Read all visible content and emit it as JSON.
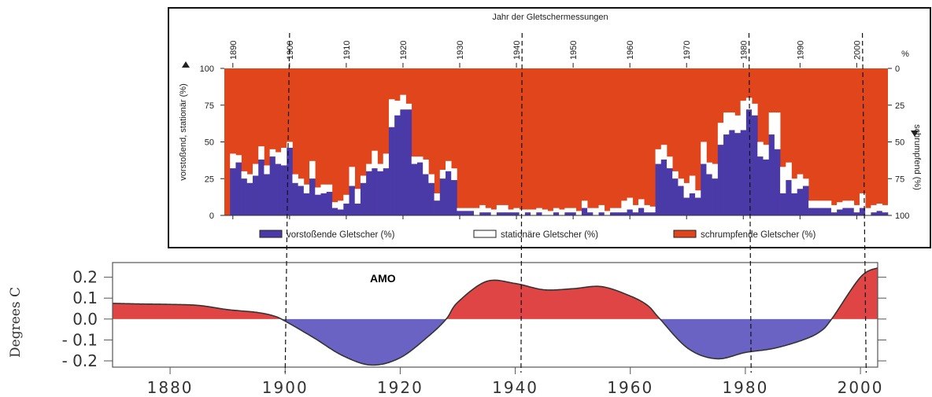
{
  "chart_data": [
    {
      "type": "bar",
      "title": "Jahr der Gletschermessungen",
      "ylabel_left": "vorstoßend, stationär (%)",
      "ylabel_right": "schrumpfend (%)",
      "right_unit": "%",
      "x_ticks": [
        "1890",
        "1900",
        "1910",
        "1920",
        "1930",
        "1940",
        "1950",
        "1960",
        "1970",
        "1980",
        "1990",
        "2000"
      ],
      "left_ticks": [
        "0",
        "25",
        "50",
        "75",
        "100"
      ],
      "right_ticks": [
        "100",
        "75",
        "50",
        "25",
        "0"
      ],
      "ylim": [
        0,
        100
      ],
      "xlim": [
        1889,
        2006
      ],
      "legend": [
        {
          "label": "vorstoßende Gletscher (%)",
          "color": "#4a3aa8"
        },
        {
          "label": "stationäre Gletscher (%)",
          "color": "#ffffff"
        },
        {
          "label": "schrumpfende Gletscher (%)",
          "color": "#e0451c"
        }
      ],
      "years": [
        1890,
        1891,
        1892,
        1893,
        1894,
        1895,
        1896,
        1897,
        1898,
        1899,
        1900,
        1901,
        1902,
        1903,
        1904,
        1905,
        1906,
        1907,
        1908,
        1909,
        1910,
        1911,
        1912,
        1913,
        1914,
        1915,
        1916,
        1917,
        1918,
        1919,
        1920,
        1921,
        1922,
        1923,
        1924,
        1925,
        1926,
        1927,
        1928,
        1929,
        1930,
        1931,
        1932,
        1933,
        1934,
        1935,
        1936,
        1937,
        1938,
        1939,
        1940,
        1941,
        1942,
        1943,
        1944,
        1945,
        1946,
        1947,
        1948,
        1949,
        1950,
        1951,
        1952,
        1953,
        1954,
        1955,
        1956,
        1957,
        1958,
        1959,
        1960,
        1961,
        1962,
        1963,
        1964,
        1965,
        1966,
        1967,
        1968,
        1969,
        1970,
        1971,
        1972,
        1973,
        1974,
        1975,
        1976,
        1977,
        1978,
        1979,
        1980,
        1981,
        1982,
        1983,
        1984,
        1985,
        1986,
        1987,
        1988,
        1989,
        1990,
        1991,
        1992,
        1993,
        1994,
        1995,
        1996,
        1997,
        1998,
        1999,
        2000,
        2001,
        2002,
        2003,
        2004,
        2005
      ],
      "series": [
        {
          "name": "vorstoßende Gletscher (%)",
          "values": [
            32,
            36,
            25,
            22,
            27,
            38,
            28,
            40,
            35,
            34,
            46,
            22,
            20,
            15,
            25,
            14,
            15,
            16,
            5,
            4,
            8,
            20,
            8,
            22,
            30,
            32,
            30,
            32,
            60,
            68,
            72,
            72,
            35,
            36,
            28,
            22,
            10,
            25,
            30,
            24,
            3,
            3,
            3,
            0,
            2,
            2,
            0,
            2,
            2,
            2,
            2,
            0,
            2,
            0,
            2,
            0,
            0,
            2,
            0,
            2,
            2,
            0,
            5,
            2,
            0,
            2,
            0,
            2,
            2,
            2,
            4,
            2,
            5,
            2,
            2,
            35,
            38,
            32,
            25,
            20,
            12,
            15,
            12,
            35,
            28,
            25,
            48,
            55,
            58,
            56,
            58,
            72,
            68,
            40,
            38,
            55,
            45,
            15,
            24,
            15,
            18,
            20,
            5,
            5,
            5,
            5,
            2,
            4,
            5,
            5,
            2,
            5,
            0,
            2,
            3,
            2
          ]
        },
        {
          "name": "stationäre Gletscher (%)",
          "values": [
            10,
            5,
            5,
            6,
            8,
            9,
            6,
            5,
            8,
            12,
            4,
            6,
            5,
            6,
            12,
            5,
            6,
            5,
            4,
            6,
            6,
            13,
            10,
            5,
            5,
            12,
            5,
            10,
            19,
            10,
            10,
            4,
            5,
            4,
            10,
            6,
            5,
            6,
            7,
            8,
            2,
            2,
            2,
            5,
            5,
            3,
            4,
            5,
            5,
            2,
            3,
            4,
            2,
            4,
            3,
            4,
            3,
            3,
            4,
            3,
            3,
            3,
            5,
            3,
            5,
            5,
            3,
            3,
            3,
            8,
            8,
            5,
            6,
            5,
            4,
            10,
            10,
            8,
            5,
            5,
            10,
            12,
            5,
            15,
            8,
            10,
            15,
            15,
            12,
            12,
            20,
            8,
            8,
            10,
            10,
            15,
            25,
            18,
            12,
            10,
            10,
            5,
            5,
            5,
            5,
            5,
            5,
            5,
            5,
            5,
            5,
            10,
            5,
            5,
            5,
            5
          ]
        }
      ]
    },
    {
      "type": "area",
      "title": "AMO",
      "ylabel": "Degrees C",
      "x_ticks": [
        "1880",
        "1900",
        "1920",
        "1940",
        "1960",
        "1980",
        "2000"
      ],
      "y_ticks": [
        "0.2",
        "0.1",
        "0.0",
        "- 0.1",
        "- 0.2"
      ],
      "ylim": [
        -0.23,
        0.27
      ],
      "xlim": [
        1870,
        2003
      ],
      "colors": {
        "positive": "#e04545",
        "negative": "#6a63c4",
        "line": "#333333"
      },
      "x": [
        1870,
        1875,
        1880,
        1885,
        1890,
        1895,
        1898,
        1900,
        1905,
        1910,
        1915,
        1920,
        1925,
        1928,
        1930,
        1935,
        1940,
        1945,
        1950,
        1955,
        1960,
        1963,
        1965,
        1970,
        1975,
        1980,
        1985,
        1990,
        1993,
        1995,
        2000,
        2003
      ],
      "y": [
        0.075,
        0.072,
        0.07,
        0.065,
        0.045,
        0.032,
        0.015,
        -0.01,
        -0.09,
        -0.175,
        -0.22,
        -0.185,
        -0.08,
        0.0,
        0.08,
        0.18,
        0.17,
        0.14,
        0.145,
        0.155,
        0.11,
        0.065,
        0.005,
        -0.14,
        -0.19,
        -0.16,
        -0.14,
        -0.1,
        -0.06,
        0.0,
        0.2,
        0.245
      ]
    }
  ],
  "annotations": {
    "dashed_line_years": [
      1900,
      1941,
      1981,
      2001
    ]
  }
}
